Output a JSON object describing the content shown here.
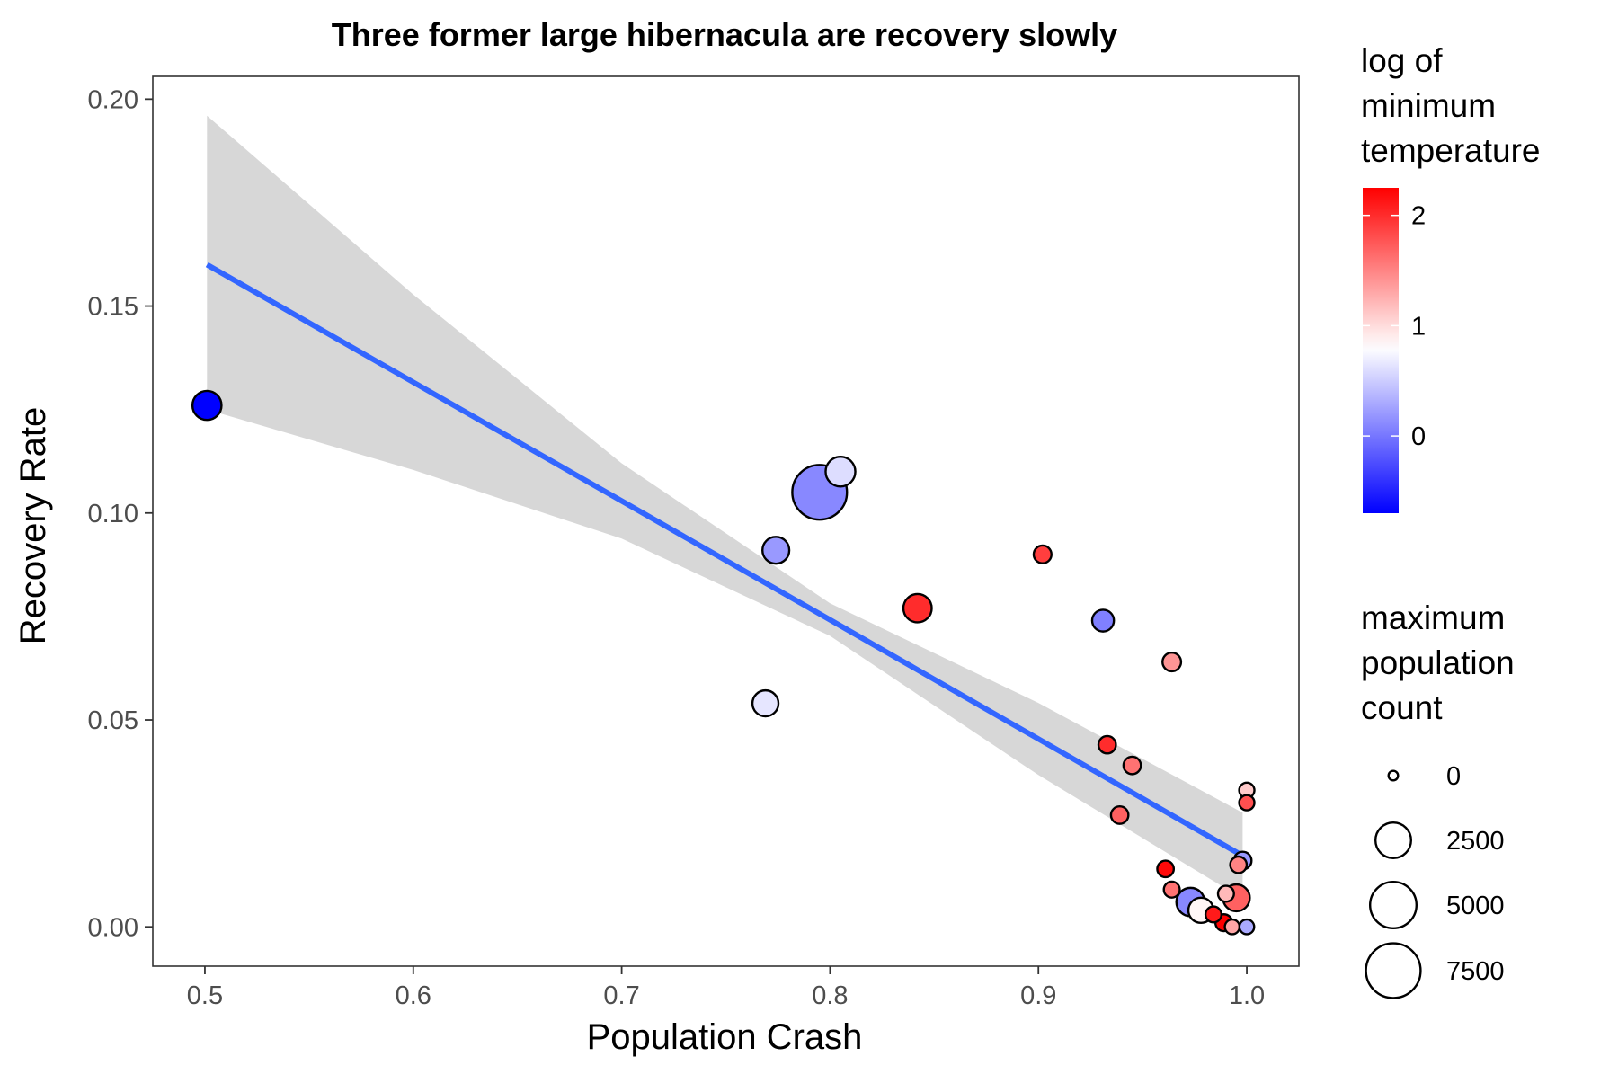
{
  "chart_data": {
    "type": "scatter",
    "title": "Three former large hibernacula are recovery slowly",
    "xlabel": "Population Crash",
    "ylabel": "Recovery Rate",
    "xlim": [
      0.475,
      1.025
    ],
    "ylim": [
      -0.0095,
      0.2055
    ],
    "x_ticks": [
      {
        "value": 0.5,
        "label": "0.5"
      },
      {
        "value": 0.6,
        "label": "0.6"
      },
      {
        "value": 0.7,
        "label": "0.7"
      },
      {
        "value": 0.8,
        "label": "0.8"
      },
      {
        "value": 0.9,
        "label": "0.9"
      },
      {
        "value": 1.0,
        "label": "1.0"
      }
    ],
    "y_ticks": [
      {
        "value": 0.0,
        "label": "0.00"
      },
      {
        "value": 0.05,
        "label": "0.05"
      },
      {
        "value": 0.1,
        "label": "0.10"
      },
      {
        "value": 0.15,
        "label": "0.15"
      },
      {
        "value": 0.2,
        "label": "0.20"
      }
    ],
    "grid": false,
    "regression": {
      "method": "linear",
      "line_color": "#3366ff",
      "band_color": "#bfbfbf",
      "x": [
        0.501,
        0.6,
        0.7,
        0.8,
        0.9,
        0.998
      ],
      "fit": [
        0.16,
        0.1316,
        0.1029,
        0.0742,
        0.0454,
        0.0172
      ],
      "lower": [
        0.125,
        0.1104,
        0.0938,
        0.0703,
        0.0367,
        0.0068
      ],
      "upper": [
        0.196,
        0.1528,
        0.112,
        0.0782,
        0.0541,
        0.0276
      ]
    },
    "color_scale": {
      "title": "log of minimum temperature",
      "min": -0.7,
      "mid": 0.8,
      "max": 2.25,
      "low_color": "#0000ff",
      "mid_color": "#ffffff",
      "high_color": "#ff0000",
      "breaks": [
        {
          "value": 0,
          "label": "0"
        },
        {
          "value": 1,
          "label": "1"
        },
        {
          "value": 2,
          "label": "2"
        }
      ]
    },
    "size_scale": {
      "title": "maximum population count",
      "breaks": [
        {
          "value": 0,
          "label": "0"
        },
        {
          "value": 2500,
          "label": "2500"
        },
        {
          "value": 5000,
          "label": "5000"
        },
        {
          "value": 7500,
          "label": "7500"
        }
      ]
    },
    "points": [
      {
        "x": 0.501,
        "y": 0.126,
        "color_value": -0.7,
        "size_value": 1400
      },
      {
        "x": 0.795,
        "y": 0.105,
        "color_value": 0.1,
        "size_value": 7500
      },
      {
        "x": 0.805,
        "y": 0.11,
        "color_value": 0.6,
        "size_value": 1500
      },
      {
        "x": 0.774,
        "y": 0.091,
        "color_value": 0.2,
        "size_value": 1100
      },
      {
        "x": 0.769,
        "y": 0.054,
        "color_value": 0.65,
        "size_value": 1000
      },
      {
        "x": 0.842,
        "y": 0.077,
        "color_value": 2.0,
        "size_value": 1300
      },
      {
        "x": 0.902,
        "y": 0.09,
        "color_value": 1.9,
        "size_value": 250
      },
      {
        "x": 0.931,
        "y": 0.074,
        "color_value": 0.05,
        "size_value": 550
      },
      {
        "x": 0.964,
        "y": 0.064,
        "color_value": 1.4,
        "size_value": 300
      },
      {
        "x": 0.933,
        "y": 0.044,
        "color_value": 2.0,
        "size_value": 230
      },
      {
        "x": 0.945,
        "y": 0.039,
        "color_value": 1.6,
        "size_value": 230
      },
      {
        "x": 0.939,
        "y": 0.027,
        "color_value": 1.7,
        "size_value": 230
      },
      {
        "x": 1.0,
        "y": 0.033,
        "color_value": 1.1,
        "size_value": 120
      },
      {
        "x": 1.0,
        "y": 0.03,
        "color_value": 1.8,
        "size_value": 120
      },
      {
        "x": 0.998,
        "y": 0.016,
        "color_value": 0.2,
        "size_value": 250
      },
      {
        "x": 0.996,
        "y": 0.015,
        "color_value": 1.5,
        "size_value": 180
      },
      {
        "x": 0.961,
        "y": 0.014,
        "color_value": 2.2,
        "size_value": 180
      },
      {
        "x": 0.964,
        "y": 0.009,
        "color_value": 1.6,
        "size_value": 150
      },
      {
        "x": 0.973,
        "y": 0.006,
        "color_value": 0.1,
        "size_value": 1300
      },
      {
        "x": 0.978,
        "y": 0.004,
        "color_value": 0.85,
        "size_value": 900
      },
      {
        "x": 0.99,
        "y": 0.008,
        "color_value": 1.2,
        "size_value": 150
      },
      {
        "x": 0.995,
        "y": 0.007,
        "color_value": 1.7,
        "size_value": 1100
      },
      {
        "x": 0.984,
        "y": 0.003,
        "color_value": 2.1,
        "size_value": 150
      },
      {
        "x": 0.989,
        "y": 0.001,
        "color_value": 2.25,
        "size_value": 200
      },
      {
        "x": 0.993,
        "y": 0.0,
        "color_value": 1.3,
        "size_value": 100
      },
      {
        "x": 1.0,
        "y": 0.0,
        "color_value": 0.3,
        "size_value": 100
      }
    ]
  }
}
